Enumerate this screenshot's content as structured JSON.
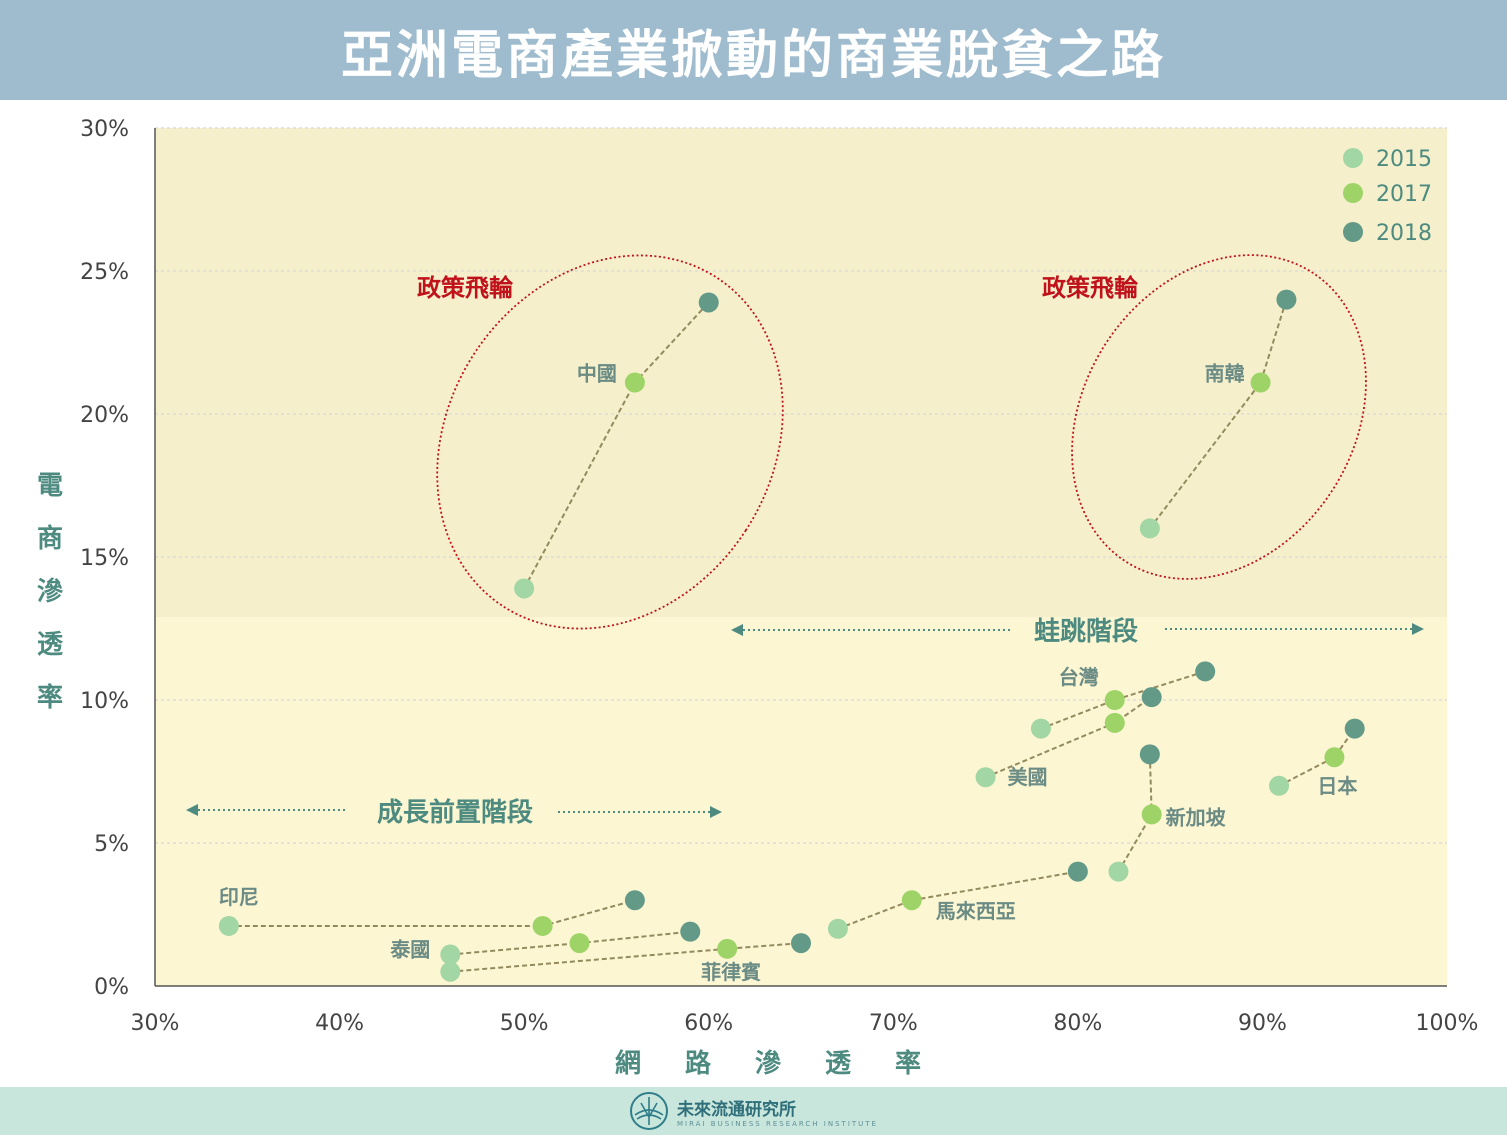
{
  "header": {
    "title": "亞洲電商產業掀動的商業脫貧之路"
  },
  "footer": {
    "brand": "未來流通研究所",
    "brand_sub": "MIRAI BUSINESS RESEARCH INSTITUTE"
  },
  "colors": {
    "title_bg": "#9fbccf",
    "zone_top": "#f5f0cb",
    "zone_bottom": "#fcf6d3",
    "y2015": "#a2d6a4",
    "y2017": "#9ed467",
    "y2018": "#629a87",
    "link": "#938a5e",
    "policy_red": "#c0121b",
    "teal_text": "#4d8a80",
    "country_text": "#6b8b85"
  },
  "annotations": {
    "policy_left": "政策飛輪",
    "policy_right": "政策飛輪",
    "leap_stage": "蛙跳階段",
    "growth_stage": "成長前置階段"
  },
  "chart_data": {
    "type": "scatter",
    "title": "亞洲電商產業掀動的商業脫貧之路",
    "xlabel": "網路滲透率",
    "ylabel": "電商滲透率",
    "xlim": [
      30,
      100
    ],
    "ylim": [
      0,
      30
    ],
    "x_ticks": [
      "30%",
      "40%",
      "50%",
      "60%",
      "70%",
      "80%",
      "90%",
      "100%"
    ],
    "y_ticks": [
      "0%",
      "5%",
      "10%",
      "15%",
      "20%",
      "25%",
      "30%"
    ],
    "legend": {
      "position": "top-right",
      "entries": [
        "2015",
        "2017",
        "2018"
      ]
    },
    "grid": true,
    "countries": [
      {
        "name": "中國",
        "points": [
          [
            50,
            13.9
          ],
          [
            56,
            21.1
          ],
          [
            60,
            23.9
          ]
        ]
      },
      {
        "name": "南韓",
        "points": [
          [
            83.9,
            16.0
          ],
          [
            89.9,
            21.1
          ],
          [
            91.3,
            24.0
          ]
        ]
      },
      {
        "name": "台灣",
        "points": [
          [
            78,
            9.0
          ],
          [
            82,
            10.0
          ],
          [
            86.9,
            11.0
          ]
        ]
      },
      {
        "name": "美國",
        "points": [
          [
            75,
            7.3
          ],
          [
            82,
            9.2
          ],
          [
            84,
            10.1
          ]
        ]
      },
      {
        "name": "日本",
        "points": [
          [
            90.9,
            7.0
          ],
          [
            93.9,
            8.0
          ],
          [
            95,
            9.0
          ]
        ]
      },
      {
        "name": "新加坡",
        "points": [
          [
            82.2,
            4.0
          ],
          [
            84,
            6.0
          ],
          [
            83.9,
            8.1
          ]
        ]
      },
      {
        "name": "馬來西亞",
        "points": [
          [
            67,
            2.0
          ],
          [
            71,
            3.0
          ],
          [
            80,
            4.0
          ]
        ]
      },
      {
        "name": "印尼",
        "points": [
          [
            34,
            2.1
          ],
          [
            51,
            2.1
          ],
          [
            56,
            3.0
          ]
        ]
      },
      {
        "name": "泰國",
        "points": [
          [
            46,
            1.1
          ],
          [
            53,
            1.5
          ],
          [
            59,
            1.9
          ]
        ]
      },
      {
        "name": "菲律賓",
        "points": [
          [
            46,
            0.5
          ],
          [
            61,
            1.3
          ],
          [
            65,
            1.5
          ]
        ]
      }
    ]
  }
}
